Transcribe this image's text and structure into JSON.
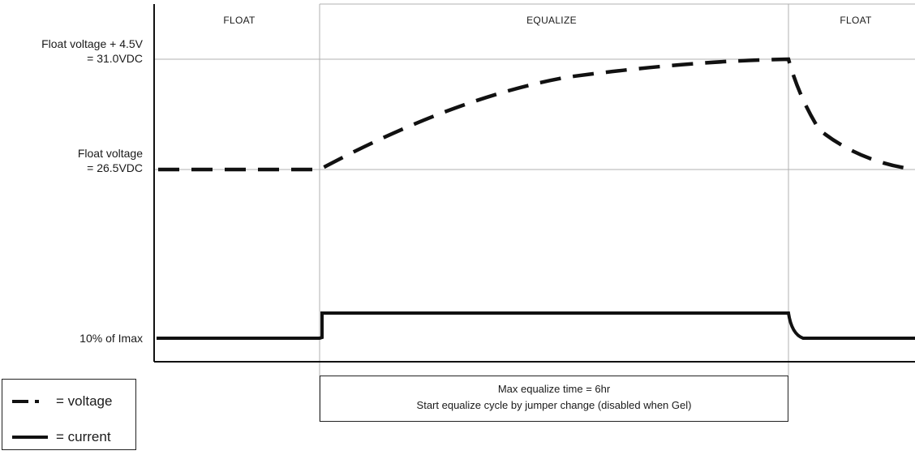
{
  "phases": {
    "float_left": "FLOAT",
    "equalize": "EQUALIZE",
    "float_right": "FLOAT"
  },
  "y_labels": {
    "high_line1": "Float voltage + 4.5V",
    "high_line2": "= 31.0VDC",
    "float_line1": "Float voltage",
    "float_line2": "= 26.5VDC",
    "current": "10% of Imax"
  },
  "note": {
    "line1": "Max equalize time = 6hr",
    "line2": "Start equalize cycle by jumper change (disabled when Gel)"
  },
  "legend": {
    "voltage": "= voltage",
    "current": "= current"
  },
  "colors": {
    "stroke": "#111111",
    "grid": "#b0b0b0"
  }
}
